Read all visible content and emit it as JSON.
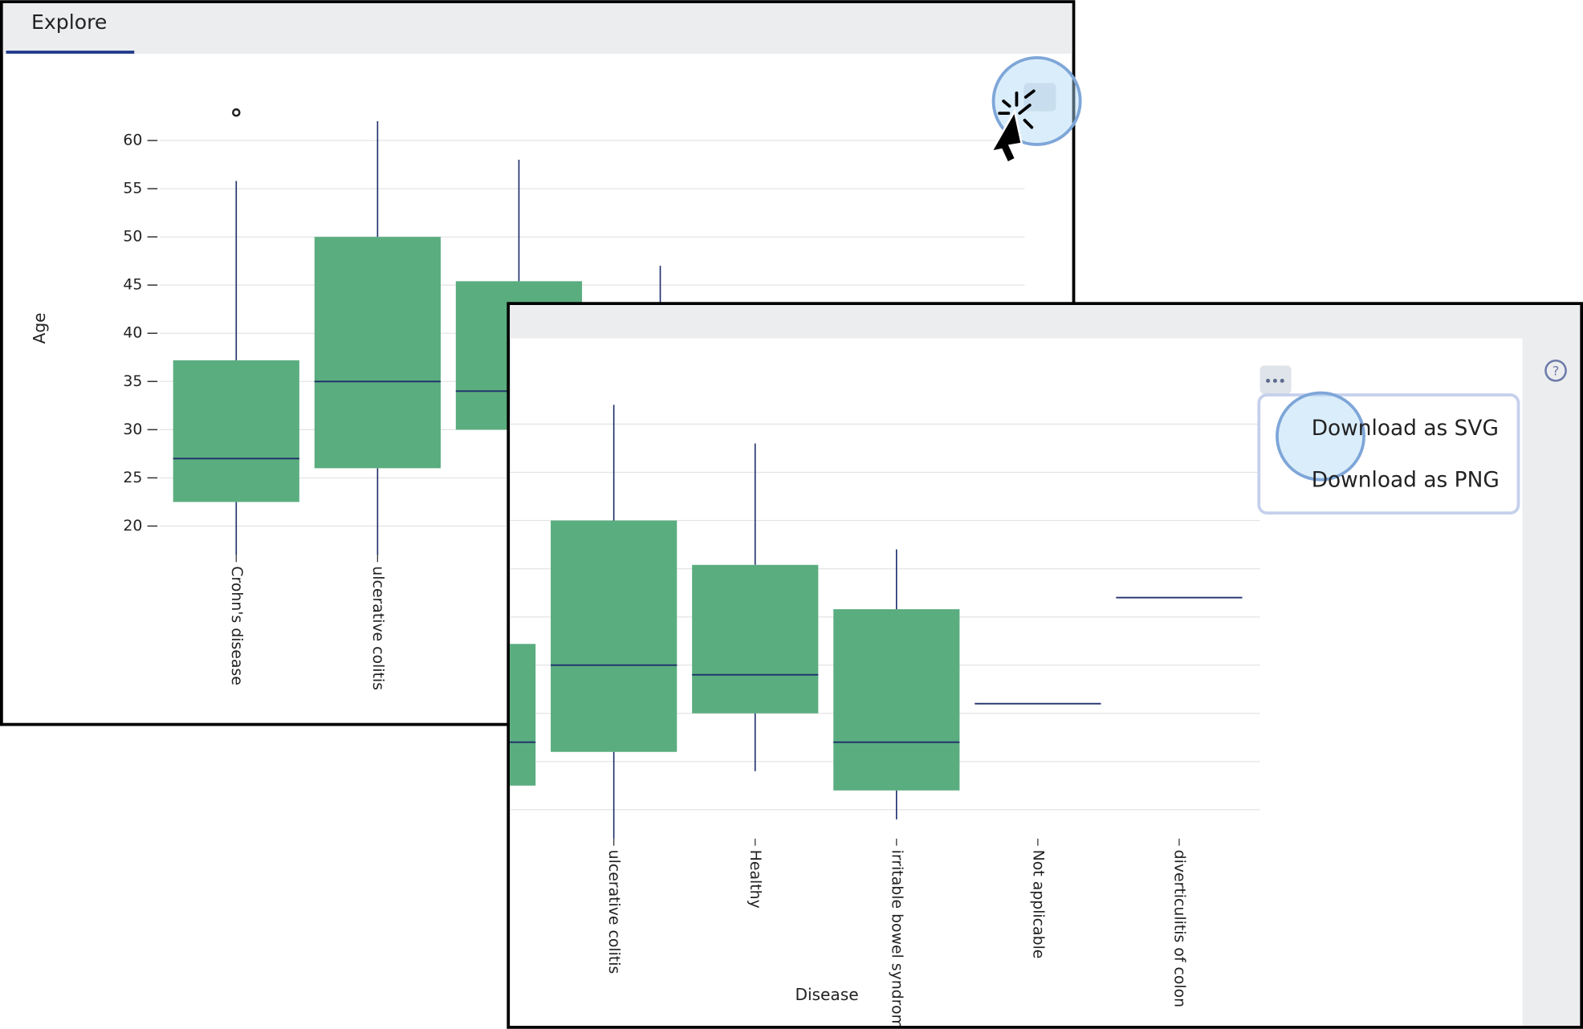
{
  "tab": "Explore",
  "menu": [
    "Download as SVG",
    "Download as PNG"
  ],
  "help": "?",
  "chart_data": {
    "type": "box",
    "y_label": "Age",
    "x_label": "Disease",
    "categories": [
      "Crohn's disease",
      "ulcerative colitis",
      "Healthy",
      "irritable bowel syndrome",
      "Not applicable",
      "diverticulitis of colon"
    ],
    "boxes": [
      {
        "min": 17,
        "q1": 22.5,
        "median": 27,
        "q3": 37.2,
        "max": 55.8,
        "outliers": [
          62.9
        ]
      },
      {
        "min": 17,
        "q1": 26,
        "median": 35,
        "q3": 50,
        "max": 62,
        "outliers": []
      },
      {
        "min": 24,
        "q1": 30,
        "median": 34,
        "q3": 45.4,
        "max": 58,
        "outliers": []
      },
      {
        "min": 19,
        "q1": 22,
        "median": 27,
        "q3": 40.8,
        "max": 47,
        "outliers": []
      },
      {
        "min": null,
        "q1": null,
        "median": 31,
        "q3": null,
        "max": null,
        "outliers": []
      },
      {
        "min": null,
        "q1": null,
        "median": 42,
        "q3": null,
        "max": null,
        "outliers": []
      }
    ],
    "color": "#5aad7f",
    "median_color": "#1f2f6b",
    "ylim": [
      17,
      65
    ],
    "yticks": [
      20,
      25,
      30,
      35,
      40,
      45,
      50,
      55,
      60
    ],
    "grid": true
  }
}
